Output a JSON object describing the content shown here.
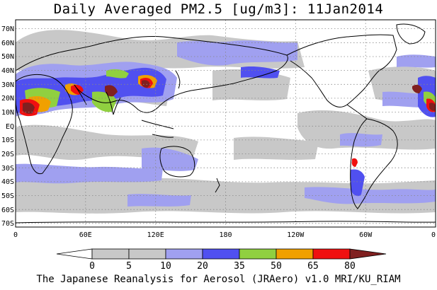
{
  "title": "Daily Averaged PM2.5 [ug/m3]: 11Jan2014",
  "footer": "The Japanese Reanalysis for Aerosol (JRAero) v1.0 MRI/KU_RIAM",
  "map": {
    "projection": "equirectangular",
    "lon_range": [
      0,
      360
    ],
    "lat_range": [
      -75,
      75
    ],
    "lat_labels": [
      "70N",
      "60N",
      "50N",
      "40N",
      "30N",
      "20N",
      "10N",
      "EQ",
      "10S",
      "20S",
      "30S",
      "40S",
      "50S",
      "60S",
      "70S"
    ],
    "lon_labels": [
      "0",
      "60E",
      "120E",
      "180",
      "120W",
      "60W",
      "0"
    ],
    "gridlines": "dotted",
    "coastline_color": "#000000"
  },
  "colorbar": {
    "levels": [
      "0",
      "5",
      "10",
      "20",
      "35",
      "50",
      "65",
      "80"
    ],
    "colors": [
      "#ffffff",
      "#c8c8c8",
      "#a0a0f0",
      "#5050f0",
      "#90d040",
      "#f0a000",
      "#f01010",
      "#802020"
    ],
    "extends": "both"
  }
}
